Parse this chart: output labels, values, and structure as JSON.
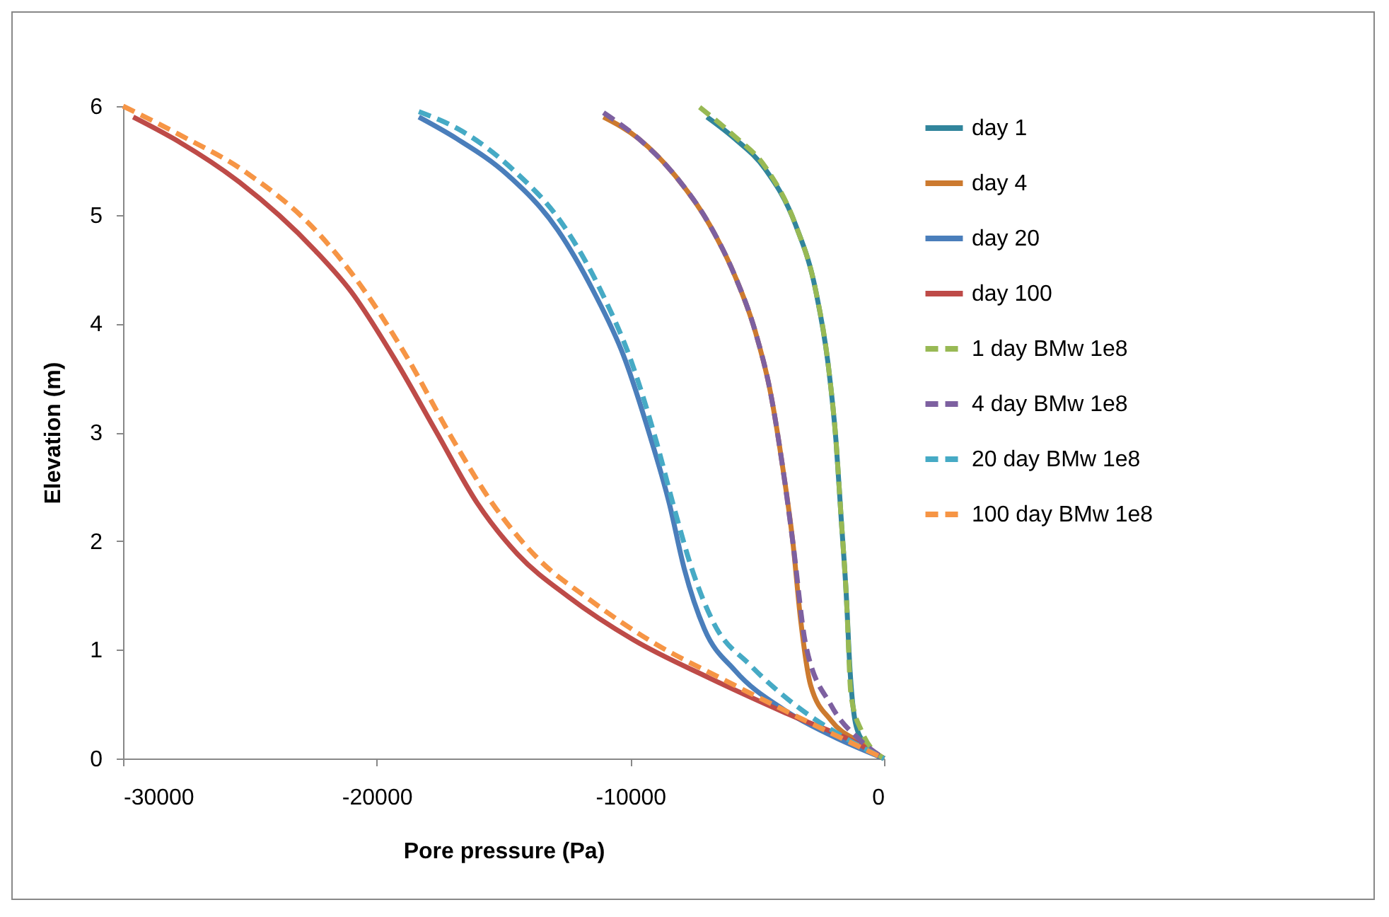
{
  "chart_data": {
    "type": "line",
    "xlabel": "Pore pressure (Pa)",
    "ylabel": "Elevation (m)",
    "xlim": [
      -30000,
      0
    ],
    "xticks": [
      -30000,
      -20000,
      -10000,
      0
    ],
    "ylim": [
      0,
      6
    ],
    "yticks": [
      0,
      1,
      2,
      3,
      4,
      5,
      6
    ],
    "grid": false,
    "legend": "right",
    "series": [
      {
        "name": "day 1",
        "color": "#31859c",
        "line_style": "solid",
        "x": [
          -6980,
          -5880,
          -4680,
          -3490,
          -2690,
          -2190,
          -1890,
          -1690,
          -1490,
          -1340,
          -1100,
          -700,
          0
        ],
        "values": [
          5.9,
          5.7,
          5.42,
          4.91,
          4.3,
          3.6,
          2.91,
          2.21,
          1.51,
          0.81,
          0.3,
          0.12,
          0
        ]
      },
      {
        "name": "day 4",
        "color": "#cc7a2f",
        "line_style": "solid",
        "x": [
          -11060,
          -9670,
          -8270,
          -6880,
          -5880,
          -5080,
          -4480,
          -3990,
          -3590,
          -3290,
          -2890,
          -2090,
          -900,
          0
        ],
        "values": [
          5.9,
          5.7,
          5.37,
          4.91,
          4.44,
          3.93,
          3.37,
          2.67,
          1.98,
          1.28,
          0.67,
          0.35,
          0.14,
          0
        ]
      },
      {
        "name": "day 20",
        "color": "#4a7ebb",
        "line_style": "solid",
        "x": [
          -18340,
          -16840,
          -14850,
          -12860,
          -11460,
          -10260,
          -9270,
          -8470,
          -7870,
          -7080,
          -5880,
          -3890,
          -1890,
          0
        ],
        "values": [
          5.9,
          5.7,
          5.37,
          4.86,
          4.3,
          3.7,
          3.0,
          2.35,
          1.74,
          1.19,
          0.81,
          0.44,
          0.19,
          0
        ]
      },
      {
        "name": "day 100",
        "color": "#be4b48",
        "line_style": "solid",
        "x": [
          -29600,
          -28000,
          -25410,
          -22420,
          -21030,
          -19230,
          -17640,
          -16040,
          -14450,
          -12460,
          -9870,
          -6880,
          -3890,
          -900,
          0
        ],
        "values": [
          5.9,
          5.7,
          5.3,
          4.67,
          4.3,
          3.65,
          3.0,
          2.35,
          1.88,
          1.49,
          1.09,
          0.74,
          0.42,
          0.12,
          0
        ]
      },
      {
        "name": "1 day BMw 1e8",
        "color": "#98b954",
        "line_style": "dashed",
        "x": [
          -7270,
          -5980,
          -4680,
          -3490,
          -2690,
          -2190,
          -1890,
          -1690,
          -1490,
          -1300,
          -900,
          0
        ],
        "values": [
          5.99,
          5.74,
          5.44,
          4.91,
          4.3,
          3.6,
          2.91,
          2.21,
          1.51,
          0.58,
          0.26,
          0
        ]
      },
      {
        "name": "4 day BMw 1e8",
        "color": "#7d60a0",
        "line_style": "dashed",
        "x": [
          -11060,
          -9670,
          -8270,
          -6880,
          -5880,
          -5080,
          -4480,
          -3990,
          -3590,
          -3090,
          -2090,
          -900,
          0
        ],
        "values": [
          5.94,
          5.7,
          5.37,
          4.91,
          4.44,
          3.93,
          3.37,
          2.67,
          1.98,
          1.05,
          0.49,
          0.16,
          0
        ]
      },
      {
        "name": "20 day BMw 1e8",
        "color": "#46aac5",
        "line_style": "dashed",
        "x": [
          -18340,
          -16640,
          -14650,
          -12660,
          -11160,
          -9960,
          -8970,
          -8270,
          -7570,
          -6680,
          -5280,
          -3490,
          -1690,
          0
        ],
        "values": [
          5.95,
          5.77,
          5.42,
          4.91,
          4.3,
          3.65,
          2.91,
          2.3,
          1.74,
          1.23,
          0.86,
          0.49,
          0.21,
          0
        ]
      },
      {
        "name": "100 day BMw 1e8",
        "color": "#f69545",
        "line_style": "dashed",
        "x": [
          -30000,
          -27800,
          -25210,
          -22220,
          -20630,
          -18830,
          -17040,
          -15450,
          -13650,
          -11660,
          -9270,
          -6280,
          -3290,
          0
        ],
        "values": [
          6.0,
          5.74,
          5.4,
          4.81,
          4.35,
          3.7,
          2.95,
          2.35,
          1.84,
          1.47,
          1.09,
          0.72,
          0.37,
          0
        ]
      }
    ]
  }
}
